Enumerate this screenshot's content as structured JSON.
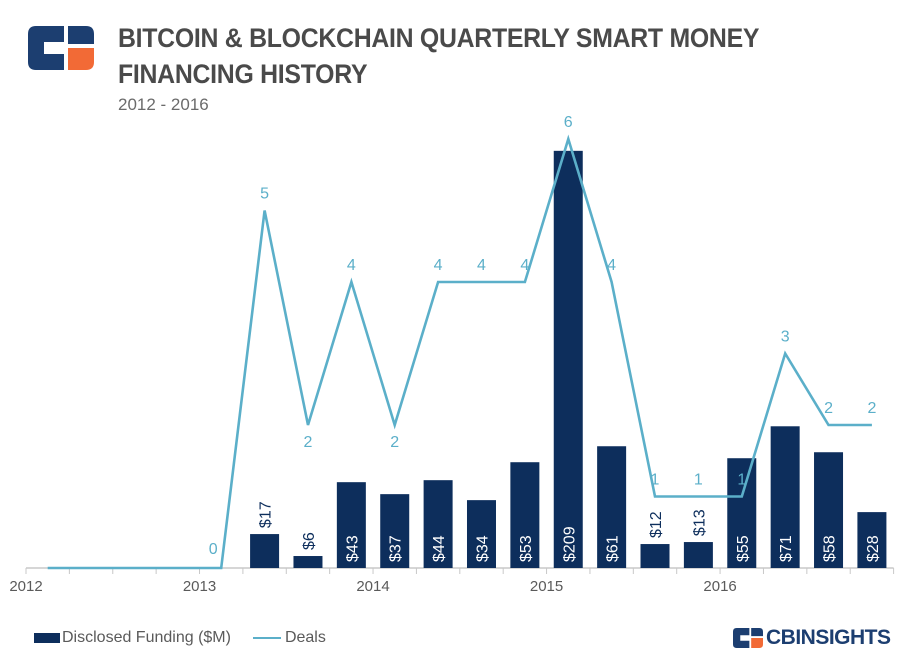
{
  "header": {
    "title": "BITCOIN & BLOCKCHAIN QUARTERLY SMART MONEY FINANCING HISTORY",
    "subtitle": "2012 - 2016"
  },
  "brand": {
    "text": "CBINSIGHTS",
    "logo_icon": "cb-logo-icon"
  },
  "colors": {
    "bar": "#0d2e5c",
    "line": "#5bafc9",
    "axis": "#c8c8c8",
    "logo_orange": "#f26a36"
  },
  "chart_data": {
    "type": "bar",
    "x": [
      "2012 Q1",
      "2012 Q2",
      "2012 Q3",
      "2012 Q4",
      "2013 Q1",
      "2013 Q2",
      "2013 Q3",
      "2013 Q4",
      "2014 Q1",
      "2014 Q2",
      "2014 Q3",
      "2014 Q4",
      "2015 Q1",
      "2015 Q2",
      "2015 Q3",
      "2015 Q4",
      "2016 Q1",
      "2016 Q2",
      "2016 Q3",
      "2016 Q4"
    ],
    "x_tick_labels": [
      "2012",
      "2013",
      "2014",
      "2015",
      "2016"
    ],
    "series": [
      {
        "name": "Disclosed Funding ($M)",
        "type": "bar",
        "values": [
          0,
          0,
          0,
          0,
          0,
          17,
          6,
          43,
          37,
          44,
          34,
          53,
          209,
          61,
          12,
          13,
          55,
          71,
          58,
          28
        ],
        "labels": [
          "",
          "",
          "",
          "",
          "",
          "$17",
          "$6",
          "$43",
          "$37",
          "$44",
          "$34",
          "$53",
          "$209",
          "$61",
          "$12",
          "$13",
          "$55",
          "$71",
          "$58",
          "$28"
        ]
      },
      {
        "name": "Deals",
        "type": "line",
        "values": [
          0,
          0,
          0,
          0,
          0,
          5,
          2,
          4,
          2,
          4,
          4,
          4,
          6,
          4,
          1,
          1,
          1,
          3,
          2,
          2
        ],
        "labels": [
          "",
          "",
          "",
          "",
          "0",
          "5",
          "2",
          "4",
          "2",
          "4",
          "4",
          "4",
          "6",
          "4",
          "1",
          "1",
          "1",
          "3",
          "2",
          "2"
        ]
      }
    ],
    "legend_placement": "bottom-left",
    "grid": false
  }
}
